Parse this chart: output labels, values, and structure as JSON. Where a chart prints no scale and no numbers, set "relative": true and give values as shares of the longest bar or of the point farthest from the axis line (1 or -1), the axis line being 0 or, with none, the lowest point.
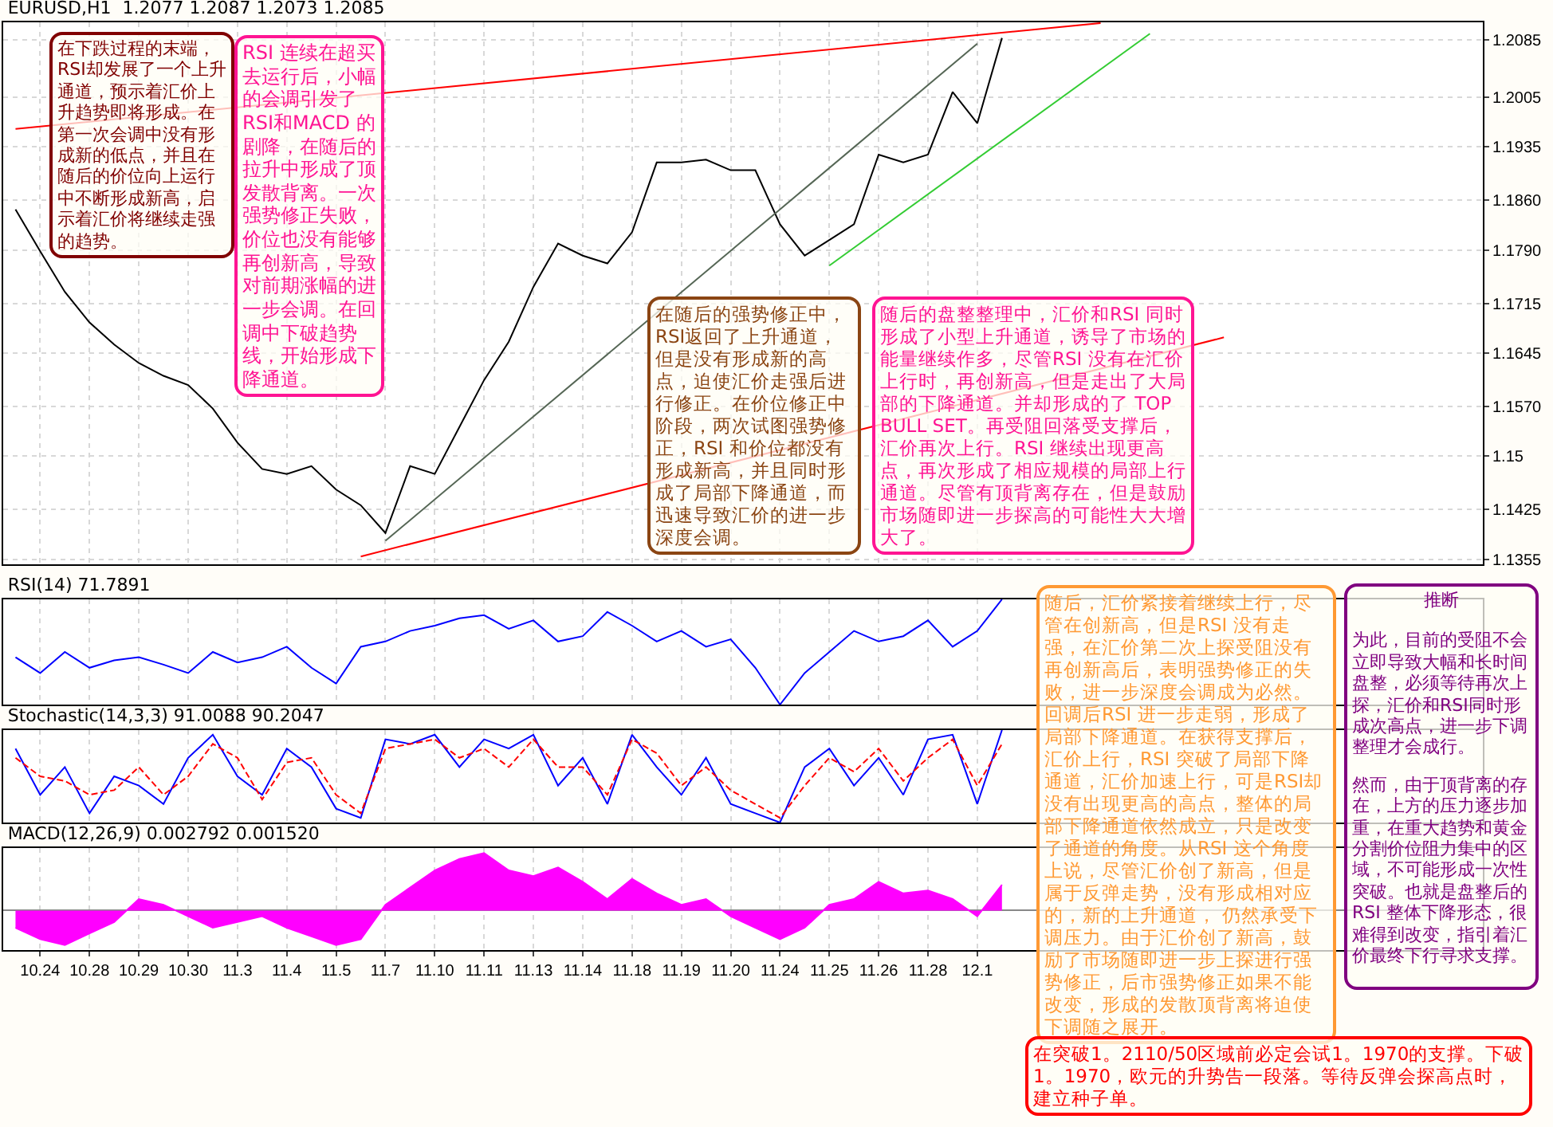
{
  "chart_data": [
    {
      "type": "line",
      "title": "EURUSD,H1  1.2077 1.2087 1.2073 1.2085",
      "categories": [
        null,
        "10.24",
        null,
        "10.28",
        null,
        "10.29",
        null,
        "10.30",
        null,
        "11.3",
        null,
        "11.4",
        null,
        "11.5",
        null,
        "11.7",
        null,
        "11.10",
        null,
        "11.11",
        null,
        "11.13",
        null,
        "11.14",
        null,
        "11.18",
        null,
        "11.19",
        null,
        "11.20",
        null,
        "11.24",
        null,
        "11.25",
        null,
        "11.26",
        null,
        "11.28",
        null,
        "12.1",
        null,
        null,
        null,
        null,
        null,
        null,
        null,
        null,
        null,
        null,
        null,
        null,
        null,
        null,
        null,
        null,
        null,
        null,
        null,
        null
      ],
      "series": [
        {
          "color": "#000000",
          "values": [
            1.1847,
            1.1788,
            1.1731,
            1.1688,
            1.1657,
            1.1631,
            1.1613,
            1.16,
            1.1567,
            1.1519,
            1.1482,
            1.1475,
            1.1486,
            1.1453,
            1.1431,
            1.1392,
            1.1486,
            1.1475,
            1.1541,
            1.1607,
            1.1661,
            1.1738,
            1.1799,
            1.1782,
            1.1771,
            1.1815,
            1.1913,
            1.1913,
            1.1917,
            1.1902,
            1.1902,
            1.1826,
            1.1782,
            1.1804,
            1.1826,
            1.1924,
            1.1913,
            1.1924,
            1.2012,
            1.1968,
            1.2088,
            null,
            null,
            null,
            null,
            null,
            null,
            null,
            null,
            null,
            null,
            null,
            null,
            null,
            null,
            null,
            null,
            null,
            null,
            null
          ]
        },
        {
          "color": "#ff0000",
          "values": [
            1.196,
            null,
            null,
            null,
            null,
            null,
            null,
            null,
            null,
            null,
            null,
            null,
            null,
            null,
            null,
            null,
            null,
            null,
            null,
            null,
            null,
            null,
            null,
            null,
            null,
            null,
            null,
            null,
            null,
            null,
            null,
            null,
            null,
            null,
            null,
            null,
            null,
            null,
            null,
            null,
            null,
            null,
            null,
            null,
            1.2109,
            null,
            null,
            null,
            null,
            null,
            null,
            null,
            null,
            null,
            null,
            null,
            null,
            null,
            null,
            null
          ]
        },
        {
          "color": "#ff0000",
          "values": [
            null,
            null,
            null,
            null,
            null,
            null,
            null,
            null,
            null,
            null,
            null,
            null,
            null,
            null,
            1.1359,
            null,
            null,
            null,
            null,
            null,
            null,
            null,
            null,
            null,
            null,
            null,
            null,
            null,
            null,
            null,
            null,
            null,
            null,
            null,
            null,
            null,
            null,
            null,
            null,
            null,
            null,
            null,
            null,
            null,
            null,
            null,
            null,
            null,
            null,
            1.1667,
            null,
            null,
            null,
            null,
            null,
            null,
            null,
            null,
            null,
            null
          ]
        },
        {
          "color": "#33cc33",
          "values": [
            null,
            null,
            null,
            null,
            null,
            null,
            null,
            null,
            null,
            null,
            null,
            null,
            null,
            null,
            null,
            null,
            null,
            null,
            null,
            null,
            null,
            null,
            null,
            null,
            null,
            null,
            null,
            null,
            null,
            null,
            null,
            null,
            null,
            1.1768,
            null,
            null,
            null,
            null,
            null,
            null,
            null,
            null,
            null,
            null,
            null,
            null,
            1.2094,
            null,
            null,
            null,
            null,
            null,
            null,
            null,
            null,
            null,
            null,
            null,
            null,
            null
          ]
        },
        {
          "color": "#556655",
          "values": [
            null,
            null,
            null,
            null,
            null,
            null,
            null,
            null,
            null,
            null,
            null,
            null,
            null,
            null,
            null,
            1.1381,
            null,
            null,
            null,
            null,
            null,
            null,
            null,
            null,
            null,
            null,
            null,
            null,
            null,
            null,
            null,
            null,
            null,
            null,
            null,
            null,
            null,
            null,
            null,
            1.208,
            null,
            null,
            null,
            null,
            null,
            null,
            null,
            null,
            null,
            null,
            null,
            null,
            null,
            null,
            null,
            null,
            null,
            null,
            null,
            null
          ]
        }
      ],
      "ylim": [
        1.1348,
        1.211
      ],
      "yticks": [
        1.1355,
        1.1425,
        1.15,
        {
          "value": 1.157,
          "label": "1.1570"
        },
        1.1645,
        1.1715,
        {
          "value": 1.179,
          "label": "1.1790"
        },
        {
          "value": 1.186,
          "label": "1.1860"
        },
        1.1935,
        1.2005,
        1.2085
      ],
      "grid": true,
      "tick_labels": "y",
      "annotations": [
        "在下跌过程的末端，RSI却发展了一个上升通道，预示着汇价上升趋势即将形成。在第一次会调中没有形成新的低点，并且在随后的价位向上运行中不断形成新高，启示着汇价将继续走强的趋势。",
        "RSI 连续在超买去运行后，小幅的会调引发了RSI和MACD 的剧降，在随后的拉升中形成了顶发散背离。一次强势修正失败，价位也没有能够再创新高，导致对前期涨幅的进一步会调。在回调中下破趋势线，开始形成下降通道。",
        "在随后的强势修正中，RSI返回了上升通道，但是没有形成新的高点，迫使汇价走强后进行修正。在价位修正中阶段，两次试图强势修正，RSI 和价位都没有形成新高，并且同时形成了局部下降通道，而迅速导致汇价的进一步深度会调。",
        "随后的盘整整理中，汇价和RSI 同时形成了小型上升通道，诱导了市场的能量继续作多，尽管RSI 没有在汇价上行时，再创新高，但是走出了大局部的下降通道。并却形成的了 TOP BULL SET。再受阻回落受支撑后，汇价再次上行。RSI 继续出现更高点，再次形成了相应规模的局部上行通道。尽管有顶背离存在，但是鼓励市场随即进一步探高的可能性大大增大了。",
        "随后，汇价紧接着继续上行，尽管在创新高，但是RSI 没有走强，在汇价第二次上探受阻没有再创新高后，表明强势修正的失败，进一步深度会调成为必然。回调后RSI 进一步走弱，形成了局部下降通道。在获得支撑后，汇价上行，RSI 突破了局部下降通道，汇价加速上行，可是RSI却没有出现更高的高点，整体的局部下降通道依然成立，只是改变了通道的角度。从RSI 这个角度上说，尽管汇价创了新高，但是属于反弹走势，没有形成相对应的，新的上升通道， 仍然承受下调压力。由于汇价创了新高，鼓励了市场随即进一步上探进行强势修正，后市强势修正如果不能改变，形成的发散顶背离将迫使下调随之展开。",
        "推断",
        "为此，目前的受阻不会立即导致大幅和长时间盘整，必须等待再次上探，汇价和RSI同时形成次高点，进一步下调整理才会成行。",
        "然而，由于顶背离的存在，上方的压力逐步加重，在重大趋势和黄金分割价位阻力集中的区域，不可能形成一次性突破。也就是盘整后的RSI 整体下降形态，很难得到改变，指引着汇价最终下行寻求支撑。",
        "在突破1。2110/50区域前必定会试1。1970的支撑。下破1。1970，欧元的升势告一段落。等待反弹会探高点时，建立种子单。"
      ]
    },
    {
      "type": "line",
      "title": "RSI(14) 71.7891",
      "relative": true,
      "grid": true,
      "tick_labels": false,
      "categories": [
        null,
        "10.24",
        null,
        "10.28",
        null,
        "10.29",
        null,
        "10.30",
        null,
        "11.3",
        null,
        "11.4",
        null,
        "11.5",
        null,
        "11.7",
        null,
        "11.10",
        null,
        "11.11",
        null,
        "11.13",
        null,
        "11.14",
        null,
        "11.18",
        null,
        "11.19",
        null,
        "11.20",
        null,
        "11.24",
        null,
        "11.25",
        null,
        "11.26",
        null,
        "11.28",
        null,
        "12.1",
        null,
        null,
        null,
        null,
        null,
        null,
        null,
        null,
        null,
        null,
        null,
        null,
        null,
        null,
        null,
        null,
        null,
        null,
        null,
        null
      ],
      "series": [
        {
          "color": "#0000ff",
          "values": [
            0.45,
            0.3,
            0.5,
            0.35,
            0.42,
            0.45,
            0.38,
            0.3,
            0.5,
            0.4,
            0.45,
            0.55,
            0.35,
            0.2,
            0.55,
            0.6,
            0.7,
            0.75,
            0.82,
            0.85,
            0.72,
            0.8,
            0.6,
            0.65,
            0.88,
            0.75,
            0.6,
            0.7,
            0.55,
            0.62,
            0.35,
            0,
            0.3,
            0.5,
            0.7,
            0.6,
            0.65,
            0.8,
            0.55,
            0.7,
            1,
            null,
            null,
            null,
            null,
            null,
            null,
            null,
            null,
            null,
            null,
            null,
            null,
            null,
            null,
            null,
            null,
            null,
            null,
            null
          ]
        }
      ]
    },
    {
      "type": "line",
      "title": "Stochastic(14,3,3) 91.0088 90.2047",
      "relative": true,
      "grid": true,
      "tick_labels": false,
      "categories": [
        null,
        "10.24",
        null,
        "10.28",
        null,
        "10.29",
        null,
        "10.30",
        null,
        "11.3",
        null,
        "11.4",
        null,
        "11.5",
        null,
        "11.7",
        null,
        "11.10",
        null,
        "11.11",
        null,
        "11.13",
        null,
        "11.14",
        null,
        "11.18",
        null,
        "11.19",
        null,
        "11.20",
        null,
        "11.24",
        null,
        "11.25",
        null,
        "11.26",
        null,
        "11.28",
        null,
        "12.1",
        null,
        null,
        null,
        null,
        null,
        null,
        null,
        null,
        null,
        null,
        null,
        null,
        null,
        null,
        null,
        null,
        null,
        null,
        null,
        null
      ],
      "series": [
        {
          "color": "#0000ff",
          "values": [
            0.8,
            0.3,
            0.6,
            0.1,
            0.5,
            0.4,
            0.2,
            0.7,
            0.95,
            0.5,
            0.3,
            0.8,
            0.6,
            0.15,
            0.05,
            0.9,
            0.85,
            0.95,
            0.6,
            0.9,
            0.8,
            0.95,
            0.4,
            0.7,
            0.2,
            0.95,
            0.6,
            0.3,
            0.7,
            0.2,
            0.1,
            0,
            0.6,
            0.8,
            0.4,
            0.7,
            0.3,
            0.9,
            0.95,
            0.2,
            1,
            null,
            null,
            null,
            null,
            null,
            null,
            null,
            null,
            null,
            null,
            null,
            null,
            null,
            null,
            null,
            null,
            null,
            null,
            null
          ]
        },
        {
          "color": "#ff0000",
          "line_style": "dashed",
          "values": [
            0.7,
            0.5,
            0.45,
            0.3,
            0.35,
            0.6,
            0.3,
            0.5,
            0.85,
            0.7,
            0.25,
            0.65,
            0.7,
            0.3,
            0.1,
            0.8,
            0.85,
            0.9,
            0.7,
            0.8,
            0.6,
            0.9,
            0.6,
            0.6,
            0.3,
            0.9,
            0.75,
            0.4,
            0.6,
            0.35,
            0.2,
            0.05,
            0.4,
            0.7,
            0.55,
            0.8,
            0.45,
            0.7,
            0.9,
            0.4,
            0.85,
            null,
            null,
            null,
            null,
            null,
            null,
            null,
            null,
            null,
            null,
            null,
            null,
            null,
            null,
            null,
            null,
            null,
            null,
            null
          ]
        }
      ]
    },
    {
      "type": "area",
      "title": "MACD(12,26,9) 0.002792 0.001520",
      "relative": true,
      "grid": true,
      "tick_labels": "x",
      "categories": [
        null,
        "10.24",
        null,
        "10.28",
        null,
        "10.29",
        null,
        "10.30",
        null,
        "11.3",
        null,
        "11.4",
        null,
        "11.5",
        null,
        "11.7",
        null,
        "11.10",
        null,
        "11.11",
        null,
        "11.13",
        null,
        "11.14",
        null,
        "11.18",
        null,
        "11.19",
        null,
        "11.20",
        null,
        "11.24",
        null,
        "11.25",
        null,
        "11.26",
        null,
        "11.28",
        null,
        "12.1",
        null,
        null,
        null,
        null,
        null,
        null,
        null,
        null,
        null,
        null,
        null,
        null,
        null,
        null,
        null,
        null,
        null,
        null,
        null,
        null
      ],
      "series": [
        {
          "color": "#ff00ff",
          "values": [
            -0.3,
            -0.5,
            -0.6,
            -0.4,
            -0.2,
            0.2,
            0.1,
            -0.1,
            -0.3,
            -0.2,
            -0.1,
            -0.3,
            -0.45,
            -0.6,
            -0.5,
            0.1,
            0.4,
            0.7,
            0.9,
            1,
            0.7,
            0.6,
            0.75,
            0.5,
            0.2,
            0.55,
            0.3,
            0.1,
            0.2,
            -0.1,
            -0.3,
            -0.5,
            -0.3,
            0.1,
            0.2,
            0.5,
            0.3,
            0.35,
            0.2,
            -0.1,
            0.45,
            null,
            null,
            null,
            null,
            null,
            null,
            null,
            null,
            null,
            null,
            null,
            null,
            null,
            null,
            null,
            null,
            null,
            null,
            null
          ]
        }
      ]
    }
  ]
}
